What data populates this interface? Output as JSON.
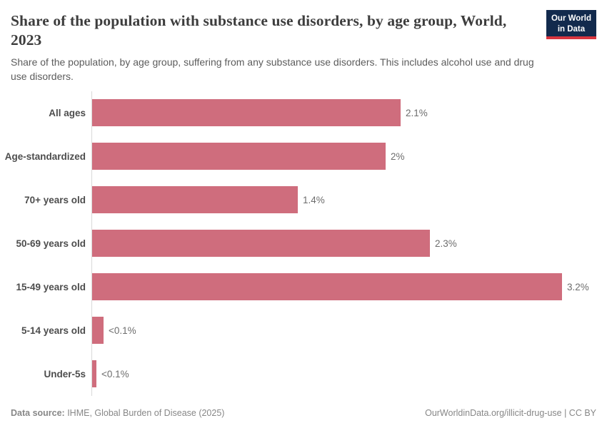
{
  "header": {
    "title": "Share of the population with substance use disorders, by age group, World, 2023",
    "subtitle": "Share of the population, by age group, suffering from any substance use disorders. This includes alcohol use and drug use disorders.",
    "logo": {
      "line1": "Our World",
      "line2": "in Data"
    }
  },
  "chart_data": {
    "type": "bar",
    "orientation": "horizontal",
    "title": "Share of the population with substance use disorders, by age group, World, 2023",
    "categories": [
      "All ages",
      "Age-standardized",
      "70+ years old",
      "50-69 years old",
      "15-49 years old",
      "5-14 years old",
      "Under-5s"
    ],
    "values": [
      2.1,
      2.0,
      1.4,
      2.3,
      3.2,
      0.08,
      0.03
    ],
    "value_labels": [
      "2.1%",
      "2%",
      "1.4%",
      "2.3%",
      "3.2%",
      "<0.1%",
      "<0.1%"
    ],
    "unit": "%",
    "xlim": [
      0,
      3.2
    ],
    "grid": false,
    "legend": "none",
    "bar_color": "#cf6d7d",
    "axis_color": "#d9d9d9"
  },
  "footer": {
    "datasource_label": "Data source:",
    "datasource_value": " IHME, Global Burden of Disease (2025)",
    "right_text": "OurWorldinData.org/illicit-drug-use | CC BY"
  },
  "colors": {
    "bar": "#cf6d7d",
    "logo_bg": "#122a4d",
    "logo_accent": "#d8353f",
    "title_text": "#3d3d3d",
    "subtitle_text": "#5c5c5c",
    "footer_text": "#878787"
  }
}
